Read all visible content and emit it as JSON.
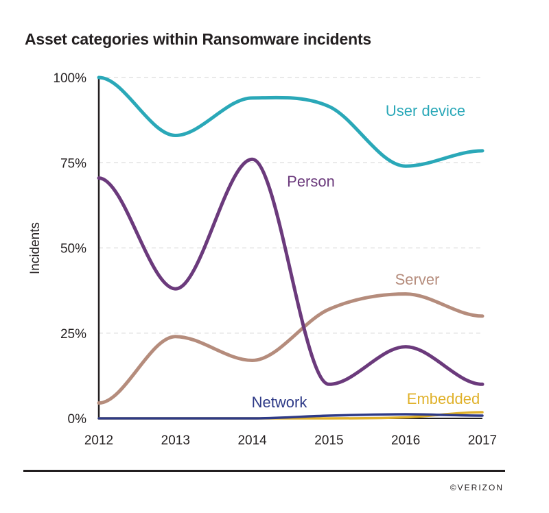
{
  "title": "Asset categories within Ransomware incidents",
  "credit": "©VERIZON",
  "chart_data": {
    "type": "line",
    "title": "Asset categories within Ransomware incidents",
    "xlabel": "",
    "ylabel": "Incidents",
    "x": [
      "2012",
      "2013",
      "2014",
      "2015",
      "2016",
      "2017"
    ],
    "ylim": [
      0,
      100
    ],
    "yticks": [
      0,
      25,
      50,
      75,
      100
    ],
    "ytick_labels": [
      "0%",
      "25%",
      "50%",
      "75%",
      "100%"
    ],
    "grid": "horizontal dashed",
    "legend": "inline labels",
    "series": [
      {
        "name": "User device",
        "color": "#2aa8b8",
        "values": [
          100,
          83,
          94,
          91.5,
          74,
          78.5
        ]
      },
      {
        "name": "Person",
        "color": "#6b3a7c",
        "values": [
          70.5,
          38,
          76,
          10,
          21,
          10
        ]
      },
      {
        "name": "Server",
        "color": "#b58c7c",
        "values": [
          4.5,
          24,
          17,
          32,
          36.5,
          30
        ]
      },
      {
        "name": "Network",
        "color": "#2e3a87",
        "values": [
          0,
          0,
          0,
          0.8,
          1.2,
          0.8
        ]
      },
      {
        "name": "Embedded",
        "color": "#e0b12a",
        "values": [
          0,
          0,
          0,
          0,
          0.3,
          1.8
        ]
      }
    ]
  }
}
